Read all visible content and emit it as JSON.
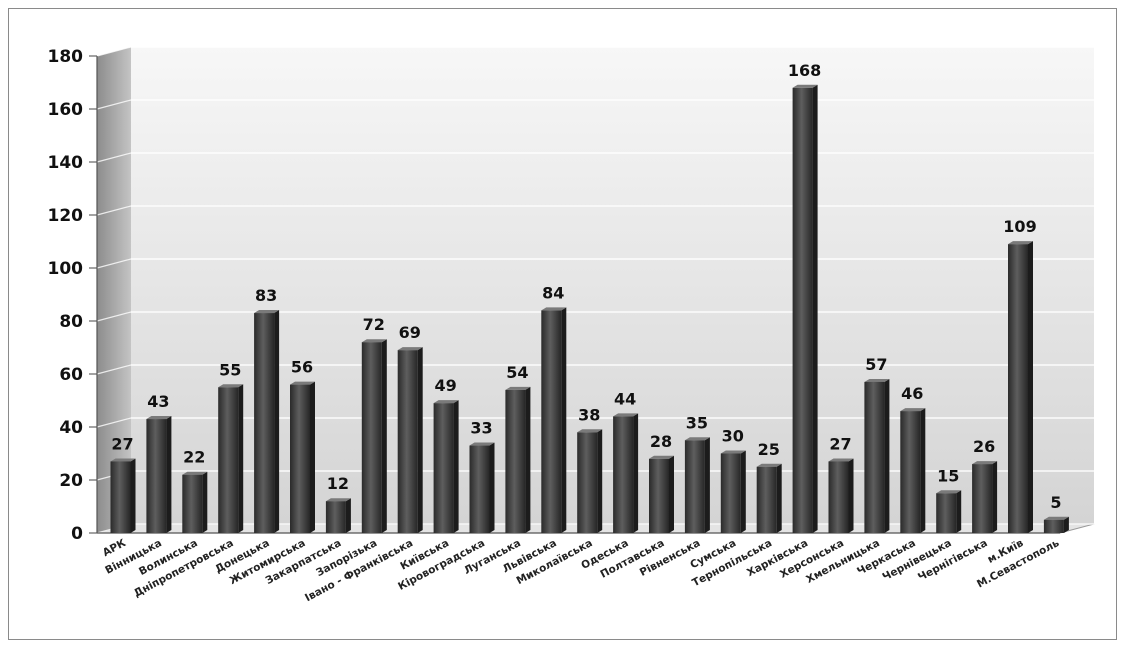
{
  "chart_data": {
    "type": "bar",
    "title": "",
    "xlabel": "",
    "ylabel": "",
    "ylim": [
      0,
      180
    ],
    "yticks": [
      0,
      20,
      40,
      60,
      80,
      100,
      120,
      140,
      160,
      180
    ],
    "grid": true,
    "legend": "none",
    "style": "3d-column",
    "colors": {
      "bar": "#3a3a3a",
      "bar_highlight": "#6a6a6a",
      "wall": "#e6e6e6",
      "axis_wall": "#9a9a9a"
    },
    "categories": [
      "АРК",
      "Вінницька",
      "Волинська",
      "Дніпропетровська",
      "Донецька",
      "Житомирська",
      "Закарпатська",
      "Запорізька",
      "Івано - Франківська",
      "Київська",
      "Кіровоградська",
      "Луганська",
      "Львівська",
      "Миколаївська",
      "Одеська",
      "Полтавська",
      "Рівненська",
      "Сумська",
      "Тернопільська",
      "Харківська",
      "Херсонська",
      "Хмельницька",
      "Черкаська",
      "Чернівецька",
      "Чернігівська",
      "м.Київ",
      "М.Севастополь"
    ],
    "values": [
      27,
      43,
      22,
      55,
      83,
      56,
      12,
      72,
      69,
      49,
      33,
      54,
      84,
      38,
      44,
      28,
      35,
      30,
      25,
      168,
      27,
      57,
      46,
      15,
      26,
      109,
      5
    ]
  }
}
